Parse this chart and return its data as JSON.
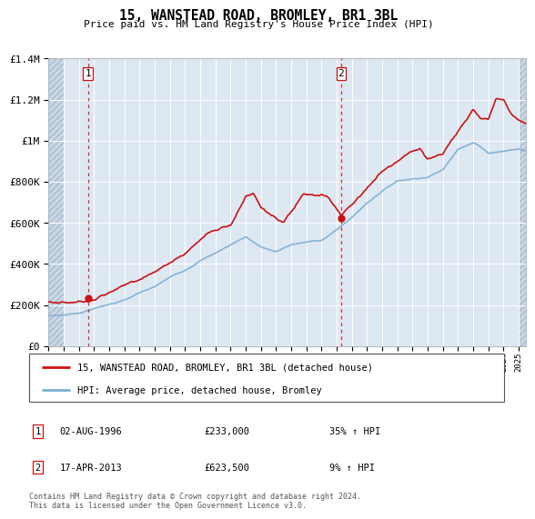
{
  "title": "15, WANSTEAD ROAD, BROMLEY, BR1 3BL",
  "subtitle": "Price paid vs. HM Land Registry's House Price Index (HPI)",
  "sale1_date": "02-AUG-1996",
  "sale1_price": 233000,
  "sale1_hpi": "35% ↑ HPI",
  "sale1_label": "1",
  "sale2_date": "17-APR-2013",
  "sale2_price": 623500,
  "sale2_hpi": "9% ↑ HPI",
  "sale2_label": "2",
  "legend_line1": "15, WANSTEAD ROAD, BROMLEY, BR1 3BL (detached house)",
  "legend_line2": "HPI: Average price, detached house, Bromley",
  "footer": "Contains HM Land Registry data © Crown copyright and database right 2024.\nThis data is licensed under the Open Government Licence v3.0.",
  "hpi_color": "#7bafd4",
  "property_color": "#cc1111",
  "dashed_color": "#cc1111",
  "hatch_color": "#c8d8e8",
  "plot_bg_color": "#dde8f2",
  "grid_color": "#ffffff",
  "ylim": [
    0,
    1400000
  ],
  "xlim_start": 1994.0,
  "xlim_end": 2025.5,
  "sale1_x": 1996.59,
  "sale2_x": 2013.29,
  "hatch_left_end": 1995.0,
  "hatch_right_start": 2025.0
}
